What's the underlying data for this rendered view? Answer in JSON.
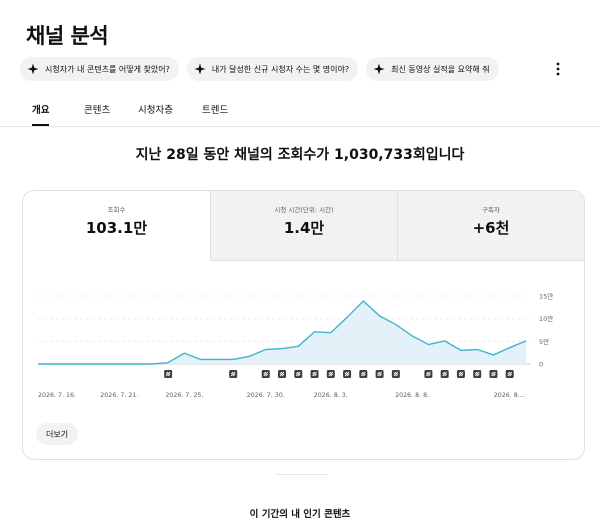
{
  "page": {
    "title": "채널 분석"
  },
  "chips": [
    {
      "label": "시청자가 내 콘텐츠를 어떻게 찾았어?",
      "icon": "sparkle-icon"
    },
    {
      "label": "내가 달성한 신규 시청자 수는 몇 명이야?",
      "icon": "sparkle-icon"
    },
    {
      "label": "최신 동영상 실적을 요약해 줘",
      "icon": "sparkle-icon"
    }
  ],
  "more_icon": "more-vertical-icon",
  "tabs": [
    {
      "label": "개요",
      "active": true
    },
    {
      "label": "콘텐츠",
      "active": false
    },
    {
      "label": "시청자층",
      "active": false
    },
    {
      "label": "트렌드",
      "active": false
    }
  ],
  "headline": "지난 28일 동안 채널의 조회수가 1,030,733회입니다",
  "metrics": [
    {
      "label": "조회수",
      "value": "103.1만",
      "selected": true
    },
    {
      "label": "시청 시간(단위: 시간)",
      "value": "1.4만",
      "selected": false
    },
    {
      "label": "구독자",
      "value": "+6천",
      "selected": false
    }
  ],
  "chart_data": {
    "type": "area",
    "series": [
      {
        "values": [
          0,
          0,
          0,
          0,
          0,
          0,
          0,
          0,
          0.3,
          2.4,
          1,
          1,
          1,
          1.7,
          3.2,
          3.4,
          3.9,
          7.1,
          6.9,
          10.3,
          13.9,
          10.6,
          8.7,
          6.2,
          4.3,
          5.1,
          3,
          3.2,
          2,
          3.6,
          5.1
        ]
      }
    ],
    "x_tick_labels": [
      "2026. 7. 16.",
      "2026. 7. 21.",
      "2026. 7. 25.",
      "2026. 7. 30.",
      "2026. 8. 3.",
      "2026. 8. 8.",
      "2026. 8...."
    ],
    "y_tick_labels": [
      "15만",
      "10만",
      "5만",
      "0"
    ],
    "y_ticks": [
      15,
      10,
      5,
      0
    ],
    "ylim": [
      0,
      15
    ],
    "line_color": "#41b4d2",
    "fill_color": "#e2f2f8",
    "grid": true,
    "upload_markers": [
      8,
      12,
      14,
      15,
      16,
      17,
      18,
      19,
      20,
      21,
      22,
      24,
      25,
      26,
      27,
      28,
      29
    ],
    "marker_icon": "video-upload-icon"
  },
  "more_button": {
    "label": "더보기"
  },
  "section": {
    "title": "이 기간의 내 인기 콘텐츠"
  }
}
